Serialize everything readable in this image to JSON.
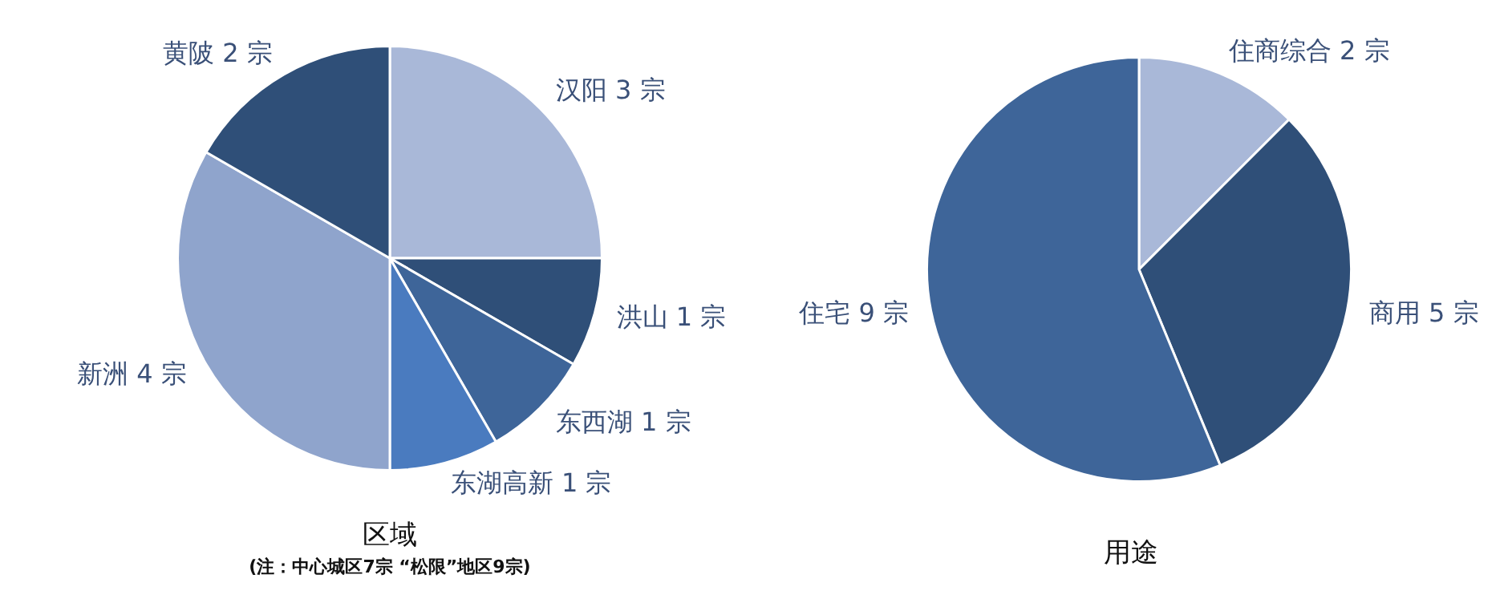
{
  "chart_data": [
    {
      "type": "pie",
      "title": "区域",
      "annotations": [
        "(注：中心城区7宗 “松限”地区9宗)"
      ],
      "categories": [
        "汉阳",
        "洪山",
        "东西湖",
        "东湖高新",
        "新洲",
        "黄陂"
      ],
      "values": [
        3,
        1,
        1,
        1,
        4,
        2
      ],
      "value_labels": [
        "3 宗",
        "1 宗",
        "1 宗",
        "1 宗",
        "4 宗",
        "2 宗"
      ],
      "colors": [
        "#a9b8d8",
        "#2f4f78",
        "#3e6599",
        "#4a7bbf",
        "#8fa4cc",
        "#2f4f78"
      ]
    },
    {
      "type": "pie",
      "title": "用途",
      "categories": [
        "住商综合",
        "商用",
        "住宅"
      ],
      "values": [
        2,
        5,
        9
      ],
      "value_labels": [
        "2 宗",
        "5 宗",
        "9 宗"
      ],
      "colors": [
        "#a9b8d8",
        "#2f4f78",
        "#3e6599"
      ]
    }
  ]
}
